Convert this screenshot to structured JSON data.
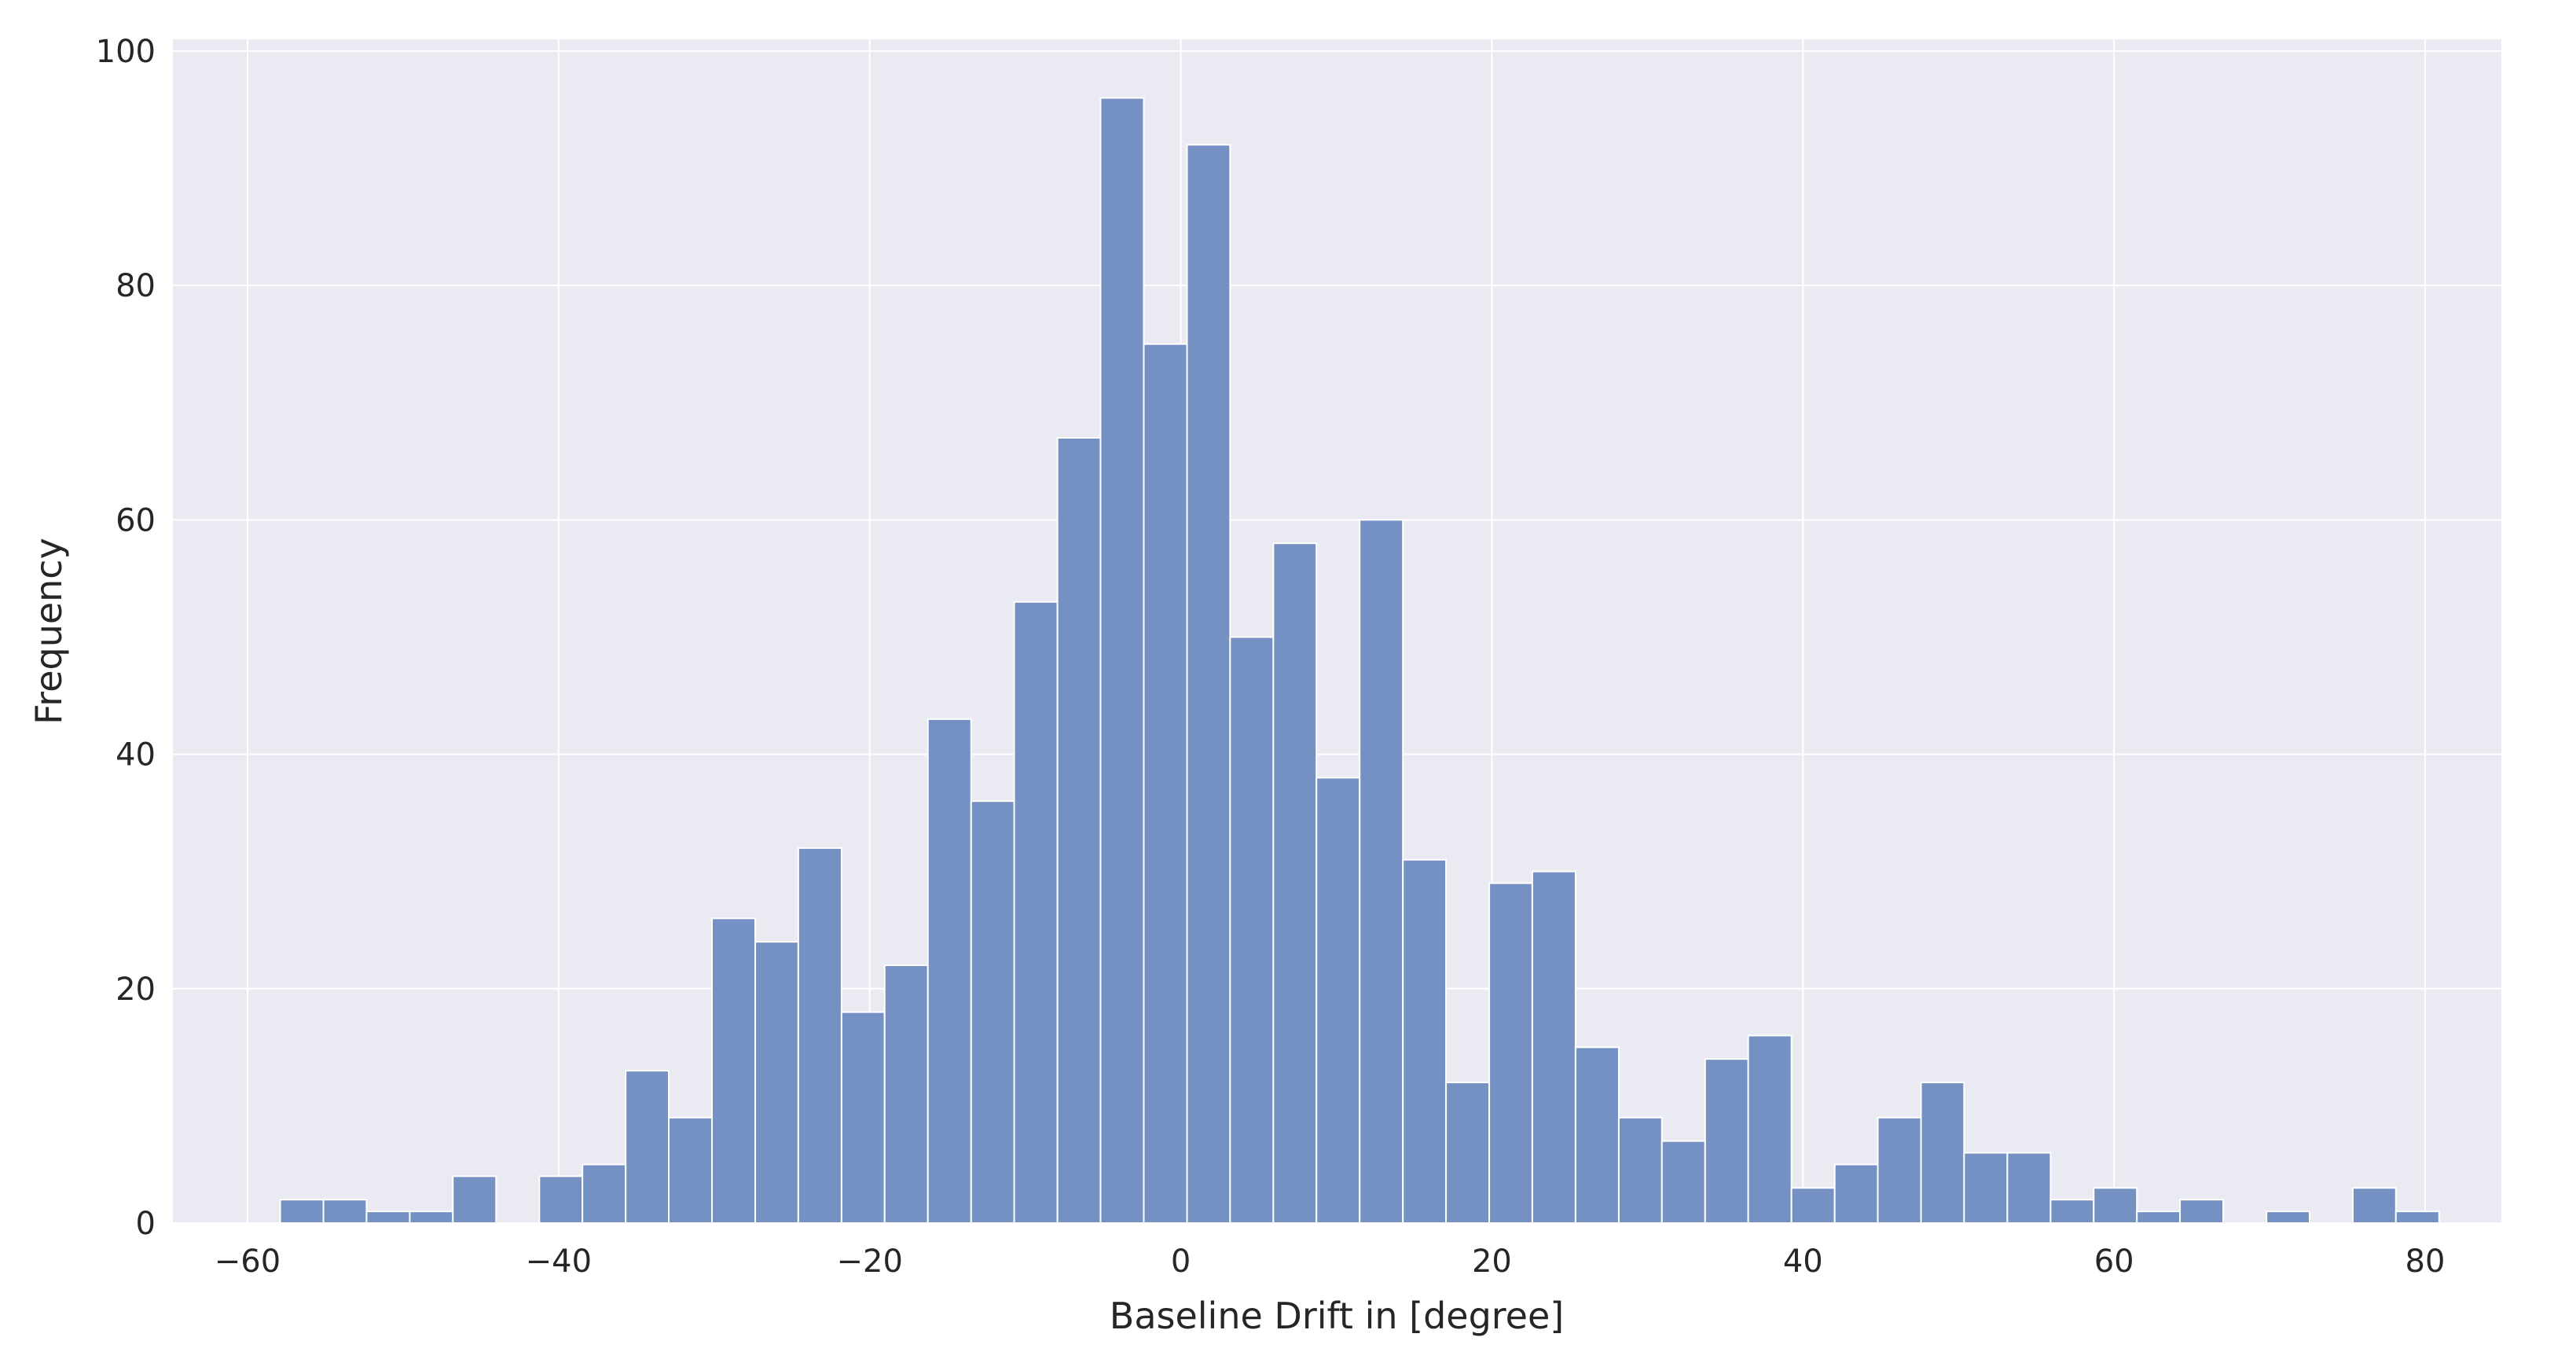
{
  "chart_data": {
    "type": "histogram",
    "xlabel": "Baseline Drift in [degree]",
    "ylabel": "Frequency",
    "bins": [
      -57.9,
      -55.12,
      -52.35,
      -49.57,
      -46.8,
      -44.02,
      -41.24,
      -38.47,
      -35.69,
      -32.92,
      -30.14,
      -27.36,
      -24.59,
      -21.81,
      -19.04,
      -16.26,
      -13.48,
      -10.71,
      -7.93,
      -5.16,
      -2.38,
      0.4,
      3.17,
      5.95,
      8.72,
      11.5,
      14.28,
      17.05,
      19.83,
      22.6,
      25.38,
      28.16,
      30.93,
      33.71,
      36.48,
      39.26,
      42.04,
      44.81,
      47.59,
      50.36,
      53.14,
      55.92,
      58.69,
      61.47,
      64.24,
      67.02,
      69.8,
      72.57,
      75.35,
      78.12,
      80.9
    ],
    "values": [
      2,
      2,
      1,
      1,
      4,
      0,
      4,
      5,
      13,
      9,
      26,
      24,
      32,
      18,
      22,
      43,
      36,
      53,
      67,
      96,
      75,
      92,
      50,
      58,
      38,
      60,
      31,
      12,
      29,
      30,
      15,
      9,
      7,
      14,
      16,
      3,
      5,
      9,
      12,
      6,
      6,
      2,
      3,
      1,
      2,
      0,
      1,
      0,
      3,
      1
    ],
    "color": "#7591c3",
    "xlim": [
      -64.8,
      84.9
    ],
    "ylim": [
      0,
      101
    ],
    "xticks": [
      {
        "value": -60,
        "label": "−60"
      },
      {
        "value": -40,
        "label": "−40"
      },
      {
        "value": -20,
        "label": "−20"
      },
      0,
      20,
      40,
      60,
      80
    ],
    "yticks": [
      0,
      20,
      40,
      60,
      80,
      100
    ],
    "grid": true
  }
}
